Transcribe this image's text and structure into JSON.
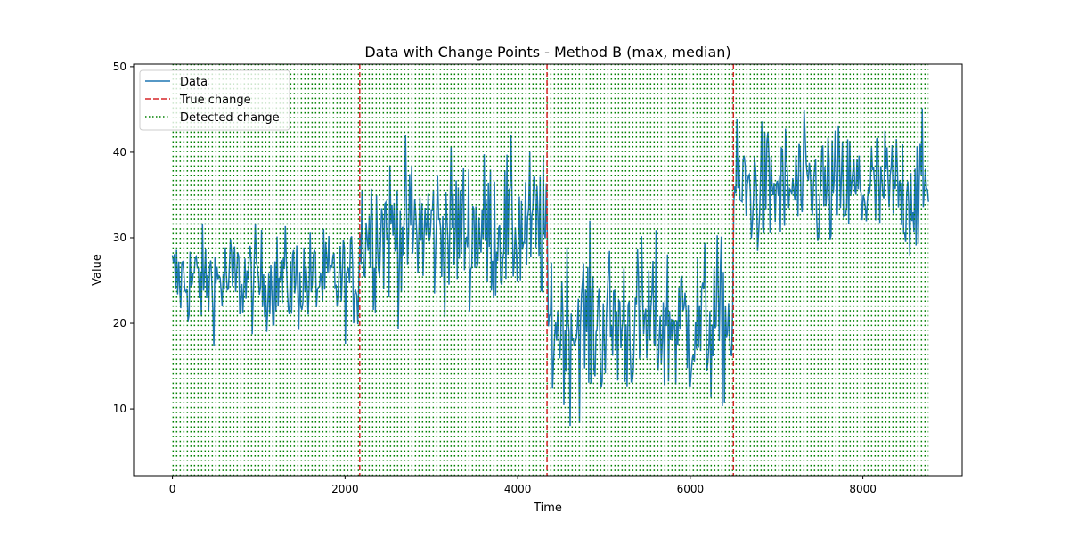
{
  "chart_data": {
    "type": "line",
    "title": "Data with Change Points - Method B (max, median)",
    "xlabel": "Time",
    "ylabel": "Value",
    "xlim": [
      -450,
      9150
    ],
    "ylim": [
      2.2,
      50.3
    ],
    "x_ticks": [
      0,
      2000,
      4000,
      6000,
      8000
    ],
    "x_tick_labels": [
      "0",
      "2000",
      "4000",
      "6000",
      "8000"
    ],
    "y_ticks": [
      10,
      20,
      30,
      40,
      50
    ],
    "y_tick_labels": [
      "10",
      "20",
      "30",
      "40",
      "50"
    ],
    "grid": false,
    "legend_placement": "upper-left",
    "colors": {
      "data": "#1f77b4",
      "true_change": "#d62728",
      "detected_change": "#008000"
    },
    "series": [
      {
        "name": "Data",
        "style": "solid",
        "x_range": [
          0,
          8760
        ],
        "segments": [
          {
            "x_start": 0,
            "x_end": 2170,
            "mean": 25,
            "min": 15.5,
            "max": 34
          },
          {
            "x_start": 2170,
            "x_end": 4340,
            "mean": 31,
            "min": 16.5,
            "max": 44
          },
          {
            "x_start": 4340,
            "x_end": 6500,
            "mean": 20,
            "min": 4.5,
            "max": 32
          },
          {
            "x_start": 6500,
            "x_end": 8760,
            "mean": 35.5,
            "min": 24,
            "max": 48
          }
        ]
      },
      {
        "name": "True change",
        "style": "dashed",
        "x": [
          2170,
          4340,
          6500
        ]
      },
      {
        "name": "Detected change",
        "style": "dotted",
        "note_range": [
          0,
          8760
        ],
        "count": 86
      }
    ],
    "legend": [
      "Data",
      "True change",
      "Detected change"
    ]
  }
}
